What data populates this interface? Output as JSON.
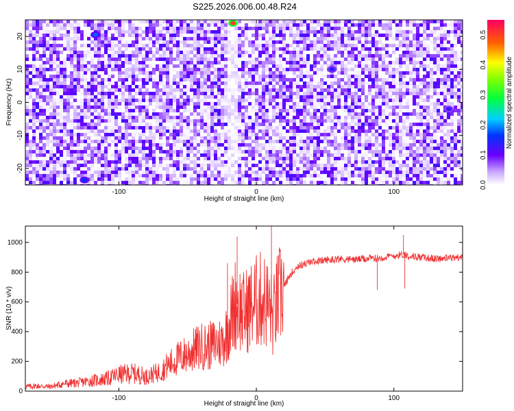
{
  "title": "S225.2026.006.00.48.R24",
  "colors": {
    "series": "#f03030",
    "axis": "#000000",
    "background": "#ffffff"
  },
  "chart_data": [
    {
      "type": "heatmap",
      "title": "S225.2026.006.00.48.R24",
      "xlabel": "Height of straight line (km)",
      "ylabel": "Frequency (Hz)",
      "xlim": [
        -168,
        150
      ],
      "ylim": [
        -25,
        25
      ],
      "xticks": [
        -100,
        0,
        100
      ],
      "xtick_labels": [
        "-100",
        "0",
        "100"
      ],
      "yticks": [
        -20,
        -10,
        0,
        10,
        20
      ],
      "ytick_labels": [
        "-20",
        "-10",
        "0",
        "10",
        "20"
      ],
      "colorbar": {
        "label": "Normalized spectral amplitude",
        "range": [
          0,
          0.55
        ],
        "ticks": [
          0,
          0.1,
          0.2,
          0.3,
          0.4,
          0.5
        ],
        "tick_labels": [
          "0.0",
          "0.1",
          "0.2",
          "0.3",
          "0.4",
          "0.5"
        ]
      },
      "features": {
        "typical_amplitude_range": [
          0.0,
          0.12
        ],
        "vertical_low_amplitude_band_x": -18,
        "peaks": [
          {
            "x": -17,
            "y": 24,
            "value": 0.5
          },
          {
            "x": -117,
            "y": 20.5,
            "value": 0.18
          },
          {
            "x": -125,
            "y": -23.5,
            "value": 0.16
          },
          {
            "x": 55,
            "y": 10,
            "value": 0.14
          },
          {
            "x": 140,
            "y": -2,
            "value": 0.13
          }
        ]
      }
    },
    {
      "type": "line",
      "xlabel": "Height of straight line (km)",
      "ylabel": "SNR (10 * v/v)",
      "xlim": [
        -168,
        150
      ],
      "ylim": [
        0,
        1110
      ],
      "xticks": [
        -100,
        0,
        100
      ],
      "xtick_labels": [
        "-100",
        "0",
        "100"
      ],
      "yticks": [
        0,
        200,
        400,
        600,
        800,
        1000
      ],
      "ytick_labels": [
        "0",
        "200",
        "400",
        "600",
        "800",
        "1000"
      ],
      "series": [
        {
          "x": [
            -168,
            -160,
            -150,
            -140,
            -130,
            -120,
            -110,
            -100,
            -90,
            -80,
            -70,
            -65,
            -60,
            -55,
            -50,
            -45,
            -40,
            -35,
            -30,
            -25,
            -22,
            -20,
            -18,
            -15,
            -12,
            -10,
            -5,
            0,
            5,
            10,
            12,
            15,
            20,
            25,
            30,
            40,
            50,
            60,
            70,
            80,
            90,
            100,
            108,
            110,
            120,
            130,
            140,
            150
          ],
          "y": [
            30,
            35,
            30,
            50,
            55,
            70,
            80,
            110,
            120,
            100,
            130,
            170,
            200,
            230,
            250,
            280,
            300,
            300,
            320,
            330,
            380,
            450,
            500,
            600,
            560,
            520,
            560,
            600,
            620,
            560,
            480,
            600,
            700,
            790,
            840,
            870,
            880,
            890,
            885,
            890,
            895,
            910,
            920,
            910,
            900,
            890,
            895,
            900
          ]
        }
      ],
      "spikes": [
        {
          "x": -21,
          "y": 860
        },
        {
          "x": -14,
          "y": 1040
        },
        {
          "x": 11,
          "y": 1110
        },
        {
          "x": 12,
          "y": 310
        },
        {
          "x": 88,
          "y": 680
        },
        {
          "x": 107,
          "y": 1050
        },
        {
          "x": 108,
          "y": 690
        }
      ]
    }
  ]
}
